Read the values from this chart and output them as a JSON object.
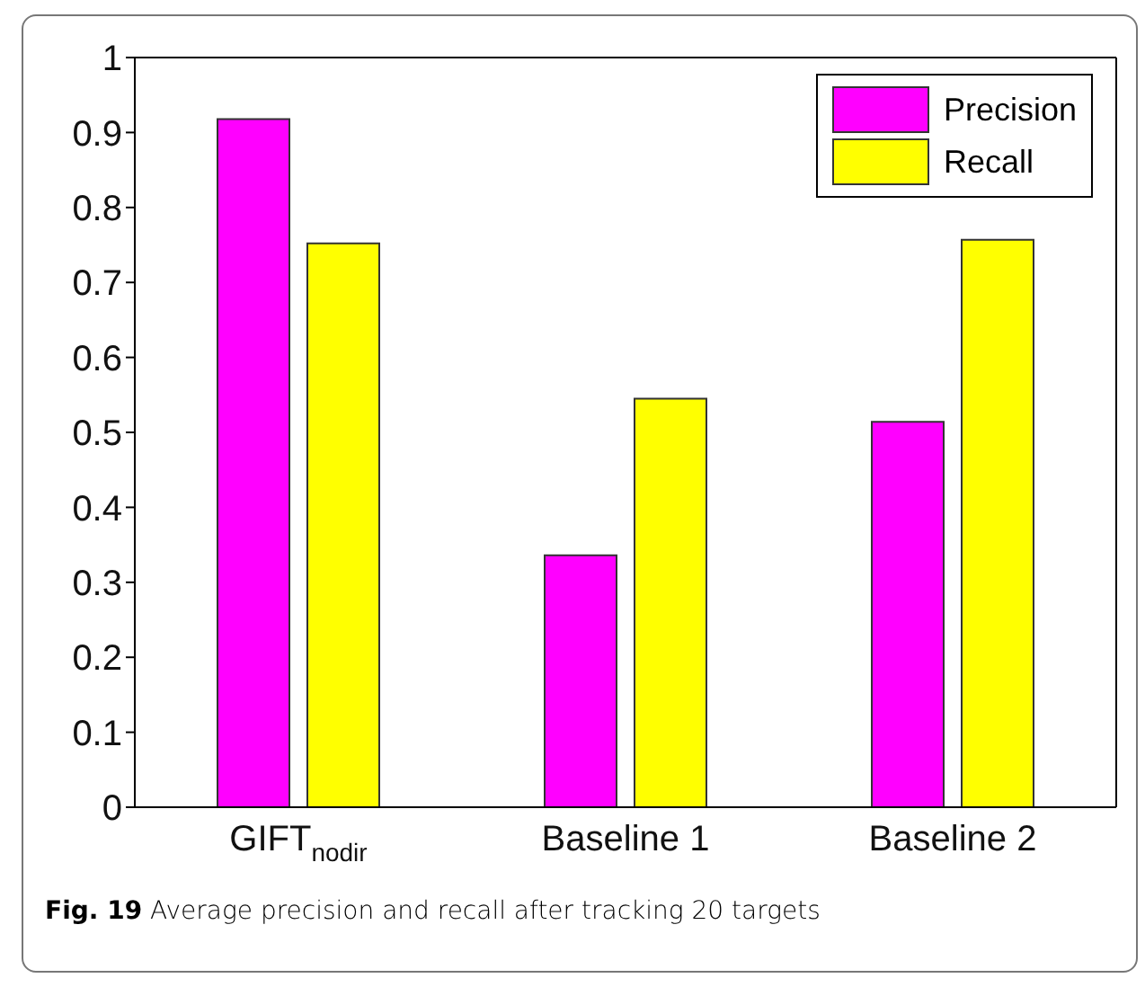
{
  "chart_data": {
    "type": "bar",
    "categories": [
      "GIFT$_{nodir}$",
      "Baseline 1",
      "Baseline 2"
    ],
    "series": [
      {
        "name": "Precision",
        "color": "#ff00ff",
        "values": [
          0.918,
          0.336,
          0.514
        ]
      },
      {
        "name": "Recall",
        "color": "#ffff00",
        "values": [
          0.752,
          0.545,
          0.757
        ]
      }
    ],
    "ylim": [
      0,
      1
    ],
    "yticks": [
      0,
      0.1,
      0.2,
      0.3,
      0.4,
      0.5,
      0.6,
      0.7,
      0.8,
      0.9,
      1
    ],
    "legend": "top right",
    "annotations": [
      "Fig. 19 Average precision and recall after tracking 20 targets"
    ]
  }
}
